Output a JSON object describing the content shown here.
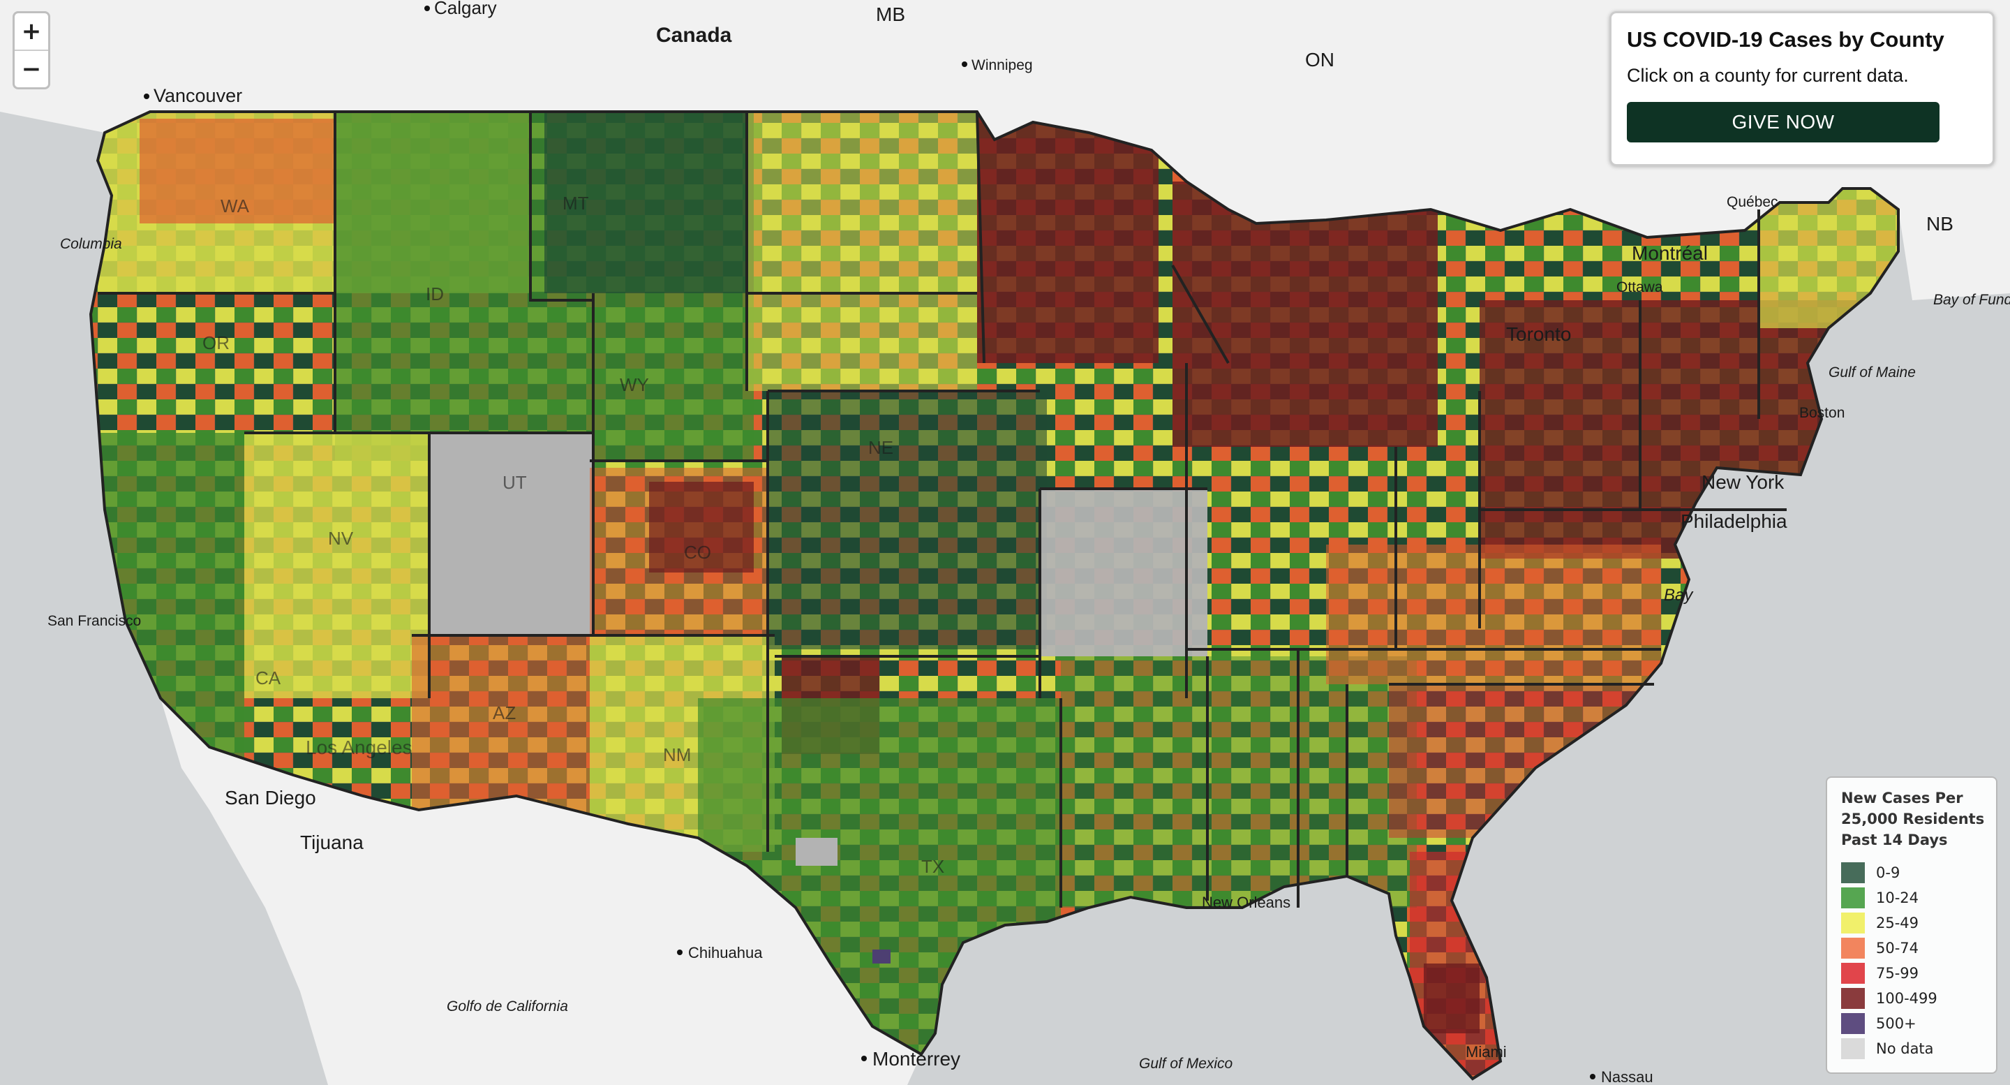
{
  "zoom": {
    "in_label": "+",
    "out_label": "−"
  },
  "info_panel": {
    "title": "US COVID-19 Cases by County",
    "subtitle": "Click on a county for current data.",
    "button_label": "GIVE NOW"
  },
  "legend": {
    "title_lines": [
      "New Cases Per",
      "25,000 Residents",
      "Past 14 Days"
    ],
    "items": [
      {
        "label": "0-9",
        "color": "#476c5a"
      },
      {
        "label": "10-24",
        "color": "#56a651"
      },
      {
        "label": "25-49",
        "color": "#f1f06b"
      },
      {
        "label": "50-74",
        "color": "#f2855e"
      },
      {
        "label": "75-99",
        "color": "#e1454b"
      },
      {
        "label": "100-499",
        "color": "#8a3b3d"
      },
      {
        "label": "500+",
        "color": "#5e4d80"
      },
      {
        "label": "No data",
        "color": "#dadada"
      }
    ]
  },
  "colors": {
    "water": "#cfd2d4",
    "land": "#f1f1f1",
    "state_border": "#222222",
    "fill_dark_green": "#1f4a33",
    "fill_green": "#3e8a2e",
    "fill_yellow": "#d7db4a",
    "fill_orange": "#de6030",
    "fill_red": "#c9262d",
    "fill_maroon": "#6e1d1e",
    "fill_gray": "#b3b3b3",
    "fill_purple": "#4d3f72"
  },
  "map_labels": {
    "countries": [
      "Canada"
    ],
    "provinces": [
      "MB",
      "ON",
      "NB"
    ],
    "states": [
      "WA",
      "OR",
      "CA",
      "NV",
      "ID",
      "MT",
      "WY",
      "UT",
      "AZ",
      "CO",
      "NM",
      "NE",
      "TX"
    ],
    "cities": [
      "Calgary",
      "Vancouver",
      "Winnipeg",
      "Québec",
      "Montréal",
      "Ottawa",
      "Toronto",
      "Boston",
      "New York",
      "Philadelphia",
      "San Francisco",
      "Los Angeles",
      "San Diego",
      "Tijuana",
      "Chihuahua",
      "Monterrey",
      "Miami",
      "Nassau",
      "New Orleans"
    ],
    "water": [
      "Columbia",
      "Bay of Fundy",
      "Gulf of Maine",
      "Golfo de California",
      "Gulf of Mexico",
      "Bay"
    ]
  }
}
